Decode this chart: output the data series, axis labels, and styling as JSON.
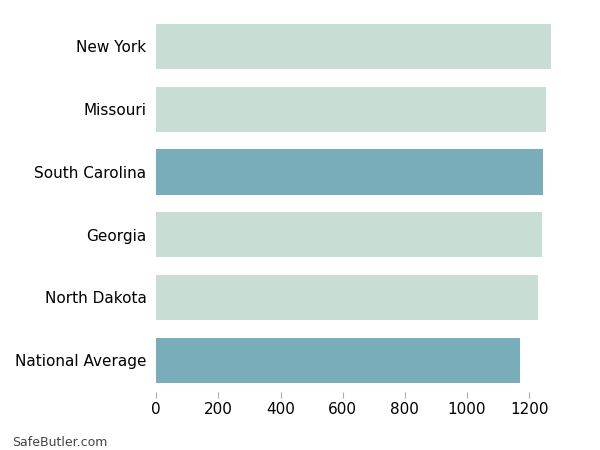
{
  "categories": [
    "National Average",
    "North Dakota",
    "Georgia",
    "South Carolina",
    "Missouri",
    "New York"
  ],
  "values": [
    1172,
    1228,
    1240,
    1244,
    1255,
    1270
  ],
  "bar_colors": [
    "#7aadba",
    "#c8ddd4",
    "#c8ddd4",
    "#7aadba",
    "#c8ddd4",
    "#c8ddd4"
  ],
  "background_color": "#ffffff",
  "xlim": [
    0,
    1380
  ],
  "xticks": [
    0,
    200,
    400,
    600,
    800,
    1000,
    1200
  ],
  "grid_color": "#ffffff",
  "bar_height": 0.72,
  "footer_text": "SafeButler.com",
  "tick_fontsize": 11,
  "label_fontsize": 11
}
